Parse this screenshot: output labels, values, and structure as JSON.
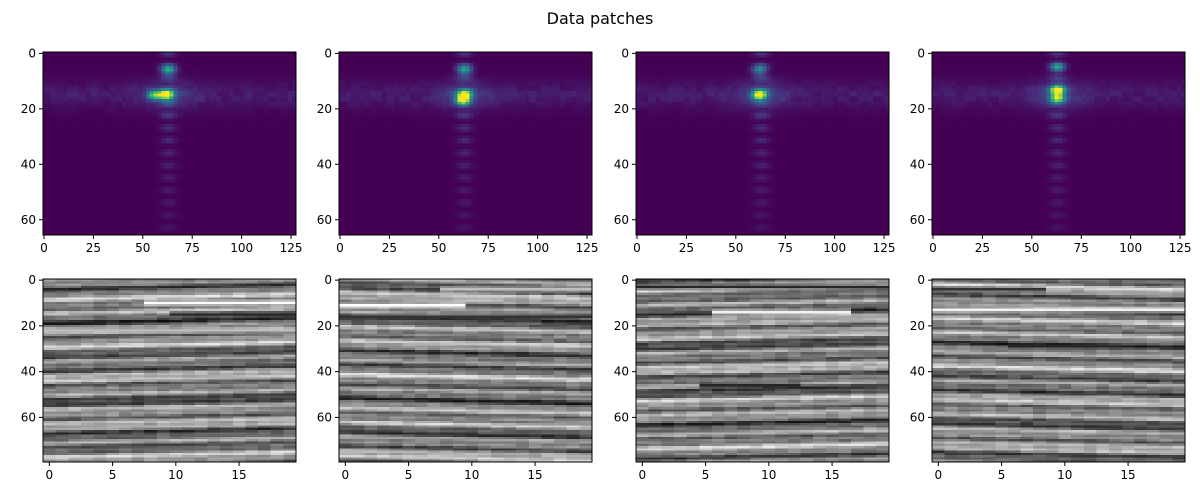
{
  "figure": {
    "title": "Data patches"
  },
  "chart_data": [
    {
      "type": "heatmap",
      "kind": "spectrum",
      "colormap": "viridis",
      "xlim": [
        0,
        127
      ],
      "ylim": [
        65,
        0
      ],
      "xticks": [
        "0",
        "25",
        "50",
        "75",
        "100",
        "125"
      ],
      "yticks": [
        "0",
        "20",
        "40",
        "60"
      ],
      "peaks": [
        {
          "x": 63,
          "y": 6,
          "v": 0.6
        },
        {
          "x": 62,
          "y": 15,
          "v": 1.0
        },
        {
          "x": 56,
          "y": 15,
          "v": 0.65
        }
      ]
    },
    {
      "type": "heatmap",
      "kind": "spectrum",
      "colormap": "viridis",
      "xlim": [
        0,
        127
      ],
      "ylim": [
        65,
        0
      ],
      "xticks": [
        "0",
        "25",
        "50",
        "75",
        "100",
        "125"
      ],
      "yticks": [
        "0",
        "20",
        "40",
        "60"
      ],
      "peaks": [
        {
          "x": 63,
          "y": 6,
          "v": 0.55
        },
        {
          "x": 63,
          "y": 15,
          "v": 0.95
        },
        {
          "x": 62,
          "y": 17,
          "v": 0.75
        }
      ]
    },
    {
      "type": "heatmap",
      "kind": "spectrum",
      "colormap": "viridis",
      "xlim": [
        0,
        127
      ],
      "ylim": [
        65,
        0
      ],
      "xticks": [
        "0",
        "25",
        "50",
        "75",
        "100",
        "125"
      ],
      "yticks": [
        "0",
        "20",
        "40",
        "60"
      ],
      "peaks": [
        {
          "x": 62,
          "y": 6,
          "v": 0.45
        },
        {
          "x": 62,
          "y": 15,
          "v": 1.0
        }
      ]
    },
    {
      "type": "heatmap",
      "kind": "spectrum",
      "colormap": "viridis",
      "xlim": [
        0,
        127
      ],
      "ylim": [
        65,
        0
      ],
      "xticks": [
        "0",
        "25",
        "50",
        "75",
        "100",
        "125"
      ],
      "yticks": [
        "0",
        "20",
        "40",
        "60"
      ],
      "peaks": [
        {
          "x": 63,
          "y": 5,
          "v": 0.5
        },
        {
          "x": 63,
          "y": 13,
          "v": 0.9
        },
        {
          "x": 63,
          "y": 16,
          "v": 0.8
        }
      ]
    },
    {
      "type": "heatmap",
      "kind": "seismic",
      "colormap": "gray",
      "xlim": [
        0,
        19
      ],
      "ylim": [
        79,
        0
      ],
      "xticks": [
        "0",
        "5",
        "10",
        "15"
      ],
      "yticks": [
        "0",
        "20",
        "40",
        "60"
      ],
      "bright_reflectors": [
        {
          "y": 10,
          "x_from": 8,
          "x_to": 19,
          "v": 1.0
        },
        {
          "y": 22,
          "x_from": 0,
          "x_to": 19,
          "v": 0.75
        }
      ],
      "dark_reflectors": [
        {
          "y": 15,
          "x_from": 10,
          "x_to": 19,
          "v": 0.15
        }
      ]
    },
    {
      "type": "heatmap",
      "kind": "seismic",
      "colormap": "gray",
      "xlim": [
        0,
        19
      ],
      "ylim": [
        79,
        0
      ],
      "xticks": [
        "0",
        "5",
        "10",
        "15"
      ],
      "yticks": [
        "0",
        "20",
        "40",
        "60"
      ],
      "bright_reflectors": [
        {
          "y": 11,
          "x_from": 0,
          "x_to": 9,
          "v": 1.0
        },
        {
          "y": 4,
          "x_from": 8,
          "x_to": 19,
          "v": 0.75
        }
      ],
      "dark_reflectors": [
        {
          "y": 16,
          "x_from": 0,
          "x_to": 19,
          "v": 0.2
        }
      ]
    },
    {
      "type": "heatmap",
      "kind": "seismic",
      "colormap": "gray",
      "xlim": [
        0,
        19
      ],
      "ylim": [
        79,
        0
      ],
      "xticks": [
        "0",
        "5",
        "10",
        "15"
      ],
      "yticks": [
        "0",
        "20",
        "40",
        "60"
      ],
      "bright_reflectors": [
        {
          "y": 14,
          "x_from": 6,
          "x_to": 16,
          "v": 0.95
        }
      ],
      "dark_reflectors": [
        {
          "y": 3,
          "x_from": 0,
          "x_to": 19,
          "v": 0.15
        },
        {
          "y": 46,
          "x_from": 5,
          "x_to": 12,
          "v": 0.15
        }
      ]
    },
    {
      "type": "heatmap",
      "kind": "seismic",
      "colormap": "gray",
      "xlim": [
        0,
        19
      ],
      "ylim": [
        79,
        0
      ],
      "xticks": [
        "0",
        "5",
        "10",
        "15"
      ],
      "yticks": [
        "0",
        "20",
        "40",
        "60"
      ],
      "bright_reflectors": [
        {
          "y": 13,
          "x_from": 0,
          "x_to": 19,
          "v": 0.95
        }
      ],
      "dark_reflectors": [
        {
          "y": 29,
          "x_from": 6,
          "x_to": 14,
          "v": 0.15
        },
        {
          "y": 4,
          "x_from": 0,
          "x_to": 8,
          "v": 0.2
        }
      ]
    }
  ]
}
